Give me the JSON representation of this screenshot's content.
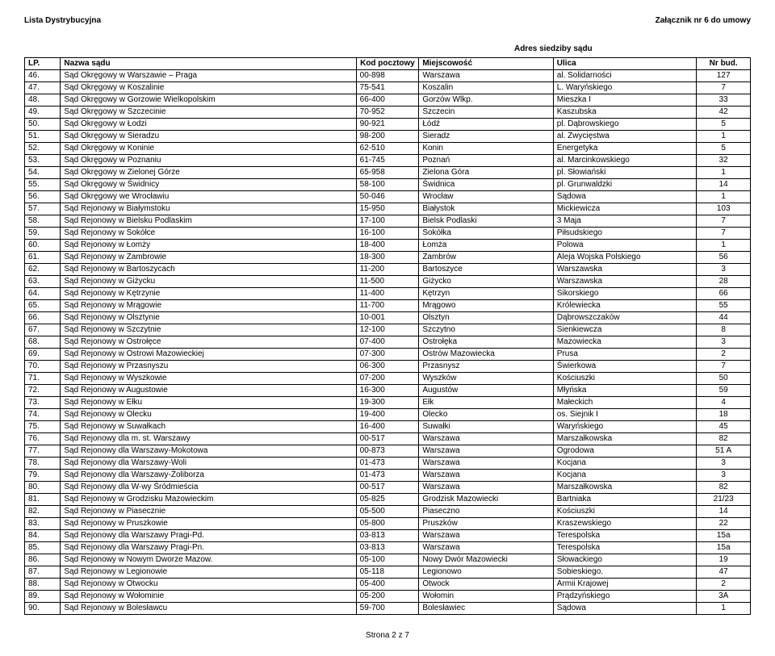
{
  "header": {
    "left": "Lista Dystrybucyjna",
    "right": "Załącznik nr 6 do umowy"
  },
  "table_title": "Adres siedziby sądu",
  "columns": {
    "lp": "LP.",
    "name": "Nazwa sądu",
    "kod": "Kod pocztowy",
    "miejscowosc": "Miejscowość",
    "ulica": "Ulica",
    "nr": "Nr bud."
  },
  "footer": "Strona 2 z 7",
  "rows": [
    {
      "lp": "46.",
      "n": "Sąd Okręgowy w Warszawie – Praga",
      "k": "00-898",
      "m": "Warszawa",
      "u": "al. Solidarności",
      "b": "127"
    },
    {
      "lp": "47.",
      "n": "Sąd Okręgowy w Koszalinie",
      "k": "75-541",
      "m": "Koszalin",
      "u": "L. Waryńskiego",
      "b": "7"
    },
    {
      "lp": "48.",
      "n": "Sąd Okręgowy w Gorzowie Wielkopolskim",
      "k": "66-400",
      "m": "Gorzów Wlkp.",
      "u": "Mieszka I",
      "b": "33"
    },
    {
      "lp": "49.",
      "n": "Sąd Okręgowy w Szczecinie",
      "k": "70-952",
      "m": "Szczecin",
      "u": "Kaszubska",
      "b": "42"
    },
    {
      "lp": "50.",
      "n": "Sąd Okręgowy w Łodzi",
      "k": "90-921",
      "m": "Łódź",
      "u": "pl. Dąbrowskiego",
      "b": "5"
    },
    {
      "lp": "51.",
      "n": "Sąd Okręgowy w Sieradzu",
      "k": "98-200",
      "m": "Sieradz",
      "u": "al. Zwycięstwa",
      "b": "1"
    },
    {
      "lp": "52.",
      "n": "Sąd Okręgowy w Koninie",
      "k": "62-510",
      "m": "Konin",
      "u": "Energetyka",
      "b": "5"
    },
    {
      "lp": "53.",
      "n": "Sąd Okręgowy w Poznaniu",
      "k": "61-745",
      "m": "Poznań",
      "u": "al. Marcinkowskiego",
      "b": "32"
    },
    {
      "lp": "54.",
      "n": "Sąd Okręgowy w Zielonej Górze",
      "k": "65-958",
      "m": "Zielona Góra",
      "u": "pl. Słowiański",
      "b": "1"
    },
    {
      "lp": "55.",
      "n": "Sąd Okręgowy w Świdnicy",
      "k": "58-100",
      "m": "Świdnica",
      "u": "pl. Grunwaldzki",
      "b": "14"
    },
    {
      "lp": "56.",
      "n": "Sąd Okręgowy we Wrocławiu",
      "k": "50-046",
      "m": "Wrocław",
      "u": "Sądowa",
      "b": "1"
    },
    {
      "lp": "57.",
      "n": "Sąd Rejonowy w Białymstoku",
      "k": "15-950",
      "m": "Białystok",
      "u": "Mickiewicza",
      "b": "103"
    },
    {
      "lp": "58.",
      "n": "Sąd Rejonowy w Bielsku Podlaskim",
      "k": "17-100",
      "m": "Bielsk Podlaski",
      "u": "3 Maja",
      "b": "7"
    },
    {
      "lp": "59.",
      "n": "Sąd Rejonowy w Sokółce",
      "k": "16-100",
      "m": "Sokółka",
      "u": "Piłsudskiego",
      "b": "7"
    },
    {
      "lp": "60.",
      "n": "Sąd Rejonowy w Łomży",
      "k": "18-400",
      "m": "Łomża",
      "u": "Polowa",
      "b": "1"
    },
    {
      "lp": "61.",
      "n": "Sąd Rejonowy w Zambrowie",
      "k": "18-300",
      "m": "Zambrów",
      "u": "Aleja Wojska Polskiego",
      "b": "56"
    },
    {
      "lp": "62.",
      "n": "Sąd Rejonowy w Bartoszycach",
      "k": "11-200",
      "m": "Bartoszyce",
      "u": "Warszawska",
      "b": "3"
    },
    {
      "lp": "63.",
      "n": "Sąd Rejonowy w Giżycku",
      "k": "11-500",
      "m": "Giżycko",
      "u": "Warszawska",
      "b": "28"
    },
    {
      "lp": "64.",
      "n": "Sąd Rejonowy w Kętrzynie",
      "k": "11-400",
      "m": "Kętrzyn",
      "u": "Sikorskiego",
      "b": "66"
    },
    {
      "lp": "65.",
      "n": "Sąd Rejonowy w Mrągowie",
      "k": "11-700",
      "m": "Mrągowo",
      "u": "Królewiecka",
      "b": "55"
    },
    {
      "lp": "66.",
      "n": "Sąd Rejonowy w Olsztynie",
      "k": "10-001",
      "m": "Olsztyn",
      "u": "Dąbrowszczaków",
      "b": "44"
    },
    {
      "lp": "67.",
      "n": "Sąd Rejonowy w Szczytnie",
      "k": "12-100",
      "m": "Szczytno",
      "u": "Sienkiewcza",
      "b": "8"
    },
    {
      "lp": "68.",
      "n": "Sąd Rejonowy w Ostrołęce",
      "k": "07-400",
      "m": "Ostrołęka",
      "u": "Mazowiecka",
      "b": "3"
    },
    {
      "lp": "69.",
      "n": "Sąd Rejonowy w Ostrowi Mazowieckiej",
      "k": "07-300",
      "m": "Ostrów Mazowiecka",
      "u": "Prusa",
      "b": "2"
    },
    {
      "lp": "70.",
      "n": "Sąd Rejonowy w Przasnyszu",
      "k": "06-300",
      "m": "Przasnysz",
      "u": "Świerkowa",
      "b": "7"
    },
    {
      "lp": "71.",
      "n": "Sąd Rejonowy w Wyszkowie",
      "k": "07-200",
      "m": "Wyszków",
      "u": "Kościuszki",
      "b": "50"
    },
    {
      "lp": "72.",
      "n": "Sąd Rejonowy w Augustowie",
      "k": "16-300",
      "m": "Augustów",
      "u": "Młyńska",
      "b": "59"
    },
    {
      "lp": "73.",
      "n": "Sąd Rejonowy w Ełku",
      "k": "19-300",
      "m": "Ełk",
      "u": "Małeckich",
      "b": "4"
    },
    {
      "lp": "74.",
      "n": "Sąd Rejonowy w Olecku",
      "k": "19-400",
      "m": "Olecko",
      "u": "os. Siejnik I",
      "b": "18"
    },
    {
      "lp": "75.",
      "n": "Sąd Rejonowy w Suwałkach",
      "k": "16-400",
      "m": "Suwałki",
      "u": "Waryńskiego",
      "b": "45"
    },
    {
      "lp": "76.",
      "n": "Sąd Rejonowy dla m. st. Warszawy",
      "k": "00-517",
      "m": "Warszawa",
      "u": "Marszałkowska",
      "b": "82"
    },
    {
      "lp": "77.",
      "n": "Sąd Rejonowy dla Warszawy-Mokotowa",
      "k": "00-873",
      "m": "Warszawa",
      "u": "Ogrodowa",
      "b": "51 A"
    },
    {
      "lp": "78.",
      "n": "Sąd Rejonowy dla Warszawy-Woli",
      "k": "01-473",
      "m": "Warszawa",
      "u": "Kocjana",
      "b": "3"
    },
    {
      "lp": "79.",
      "n": "Sąd Rejonowy dla Warszawy-Żoliborza",
      "k": "01-473",
      "m": "Warszawa",
      "u": "Kocjana",
      "b": "3"
    },
    {
      "lp": "80.",
      "n": "Sąd Rejonowy dla W-wy Śródmieścia",
      "k": "00-517",
      "m": "Warszawa",
      "u": "Marszałkowska",
      "b": "82"
    },
    {
      "lp": "81.",
      "n": "Sąd Rejonowy w Grodzisku Mazowieckim",
      "k": "05-825",
      "m": "Grodzisk Mazowiecki",
      "u": "Bartniaka",
      "b": "21/23"
    },
    {
      "lp": "82.",
      "n": "Sąd Rejonowy w Piasecznie",
      "k": "05-500",
      "m": "Piaseczno",
      "u": "Kościuszki",
      "b": "14"
    },
    {
      "lp": "83.",
      "n": "Sąd Rejonowy w Pruszkowie",
      "k": "05-800",
      "m": "Pruszków",
      "u": "Kraszewskiego",
      "b": "22"
    },
    {
      "lp": "84.",
      "n": "Sąd Rejonowy dla Warszawy Pragi-Pd.",
      "k": "03-813",
      "m": "Warszawa",
      "u": "Terespolska",
      "b": "15a"
    },
    {
      "lp": "85.",
      "n": "Sąd Rejonowy dla Warszawy Pragi-Pn.",
      "k": "03-813",
      "m": "Warszawa",
      "u": "Terespolska",
      "b": "15a"
    },
    {
      "lp": "86.",
      "n": "Sąd Rejonowy w Nowym Dworze Mazow.",
      "k": "05-100",
      "m": "Nowy Dwór Mazowiecki",
      "u": "Słowackiego",
      "b": "19"
    },
    {
      "lp": "87.",
      "n": "Sąd Rejonowy w Legionowie",
      "k": "05-118",
      "m": "Legionowo",
      "u": "Sobieskiego.",
      "b": "47"
    },
    {
      "lp": "88.",
      "n": "Sąd Rejonowy w Otwocku",
      "k": "05-400",
      "m": "Otwock",
      "u": "Armii Krajowej",
      "b": "2"
    },
    {
      "lp": "89.",
      "n": "Sąd Rejonowy w Wołominie",
      "k": "05-200",
      "m": "Wołomin",
      "u": "Prądzyńskiego",
      "b": "3A"
    },
    {
      "lp": "90.",
      "n": "Sąd Rejonowy w Bolesławcu",
      "k": "59-700",
      "m": "Bolesławiec",
      "u": "Sądowa",
      "b": "1"
    }
  ]
}
